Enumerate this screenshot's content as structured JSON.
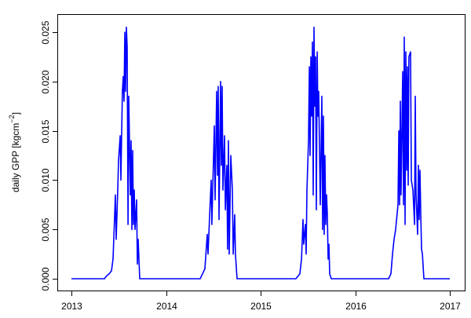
{
  "chart_data": {
    "type": "line",
    "title": "",
    "xlabel": "",
    "ylabel_main": "daily GPP [kgcm",
    "ylabel_sup": "−2",
    "ylabel_end": "]",
    "xlim": [
      2013,
      2017
    ],
    "ylim": [
      0,
      0.025
    ],
    "x_ticks": [
      2013,
      2014,
      2015,
      2016,
      2017
    ],
    "x_tick_labels": [
      "2013",
      "2014",
      "2015",
      "2016",
      "2017"
    ],
    "y_ticks": [
      0,
      0.005,
      0.01,
      0.015,
      0.02,
      0.025
    ],
    "y_tick_labels": [
      "0.000",
      "0.005",
      "0.010",
      "0.015",
      "0.020",
      "0.025"
    ],
    "grid": false,
    "line_color": "#0000ff",
    "series": [
      {
        "points": [
          [
            2013.0,
            0
          ],
          [
            2013.349,
            0
          ],
          [
            2013.373,
            0.0003
          ],
          [
            2013.398,
            0.0005
          ],
          [
            2013.423,
            0.0008
          ],
          [
            2013.44,
            0.002
          ],
          [
            2013.465,
            0.0085
          ],
          [
            2013.473,
            0.004
          ],
          [
            2013.49,
            0.009
          ],
          [
            2013.498,
            0.012
          ],
          [
            2013.515,
            0.0145
          ],
          [
            2013.523,
            0.01
          ],
          [
            2013.539,
            0.019
          ],
          [
            2013.548,
            0.0205
          ],
          [
            2013.556,
            0.018
          ],
          [
            2013.564,
            0.025
          ],
          [
            2013.573,
            0.019
          ],
          [
            2013.581,
            0.0255
          ],
          [
            2013.589,
            0.0235
          ],
          [
            2013.598,
            0.0055
          ],
          [
            2013.606,
            0.0185
          ],
          [
            2013.622,
            0.0085
          ],
          [
            2013.631,
            0.014
          ],
          [
            2013.639,
            0.005
          ],
          [
            2013.647,
            0.013
          ],
          [
            2013.656,
            0.0055
          ],
          [
            2013.664,
            0.009
          ],
          [
            2013.672,
            0.005
          ],
          [
            2013.689,
            0.008
          ],
          [
            2013.697,
            0.0015
          ],
          [
            2013.705,
            0.004
          ],
          [
            2013.714,
            0.002
          ],
          [
            2013.722,
            0
          ],
          [
            2014.361,
            0
          ],
          [
            2014.386,
            0.0005
          ],
          [
            2014.411,
            0.001
          ],
          [
            2014.436,
            0.0045
          ],
          [
            2014.444,
            0.0025
          ],
          [
            2014.461,
            0.0065
          ],
          [
            2014.477,
            0.01
          ],
          [
            2014.485,
            0.0055
          ],
          [
            2014.51,
            0.0155
          ],
          [
            2014.519,
            0.008
          ],
          [
            2014.535,
            0.019
          ],
          [
            2014.544,
            0.0105
          ],
          [
            2014.552,
            0.0195
          ],
          [
            2014.56,
            0.006
          ],
          [
            2014.577,
            0.02
          ],
          [
            2014.585,
            0.0115
          ],
          [
            2014.593,
            0.0195
          ],
          [
            2014.602,
            0.009
          ],
          [
            2014.618,
            0.0145
          ],
          [
            2014.627,
            0.007
          ],
          [
            2014.643,
            0.0115
          ],
          [
            2014.651,
            0.003
          ],
          [
            2014.66,
            0.014
          ],
          [
            2014.668,
            0.0025
          ],
          [
            2014.685,
            0.0125
          ],
          [
            2014.701,
            0.009
          ],
          [
            2014.71,
            0.0025
          ],
          [
            2014.726,
            0.0065
          ],
          [
            2014.734,
            0.0025
          ],
          [
            2014.751,
            0
          ],
          [
            2015.373,
            0
          ],
          [
            2015.398,
            0.0003
          ],
          [
            2015.415,
            0.0005
          ],
          [
            2015.432,
            0.002
          ],
          [
            2015.448,
            0.006
          ],
          [
            2015.456,
            0.0035
          ],
          [
            2015.473,
            0.0055
          ],
          [
            2015.481,
            0.0025
          ],
          [
            2015.49,
            0.009
          ],
          [
            2015.506,
            0.014
          ],
          [
            2015.515,
            0.0215
          ],
          [
            2015.523,
            0.0125
          ],
          [
            2015.531,
            0.0225
          ],
          [
            2015.539,
            0.0165
          ],
          [
            2015.548,
            0.024
          ],
          [
            2015.556,
            0.0085
          ],
          [
            2015.564,
            0.0255
          ],
          [
            2015.573,
            0.0175
          ],
          [
            2015.581,
            0.0225
          ],
          [
            2015.589,
            0.007
          ],
          [
            2015.598,
            0.023
          ],
          [
            2015.606,
            0.0165
          ],
          [
            2015.614,
            0.019
          ],
          [
            2015.631,
            0.0075
          ],
          [
            2015.647,
            0.0185
          ],
          [
            2015.656,
            0.005
          ],
          [
            2015.664,
            0.0165
          ],
          [
            2015.672,
            0.0045
          ],
          [
            2015.68,
            0.0125
          ],
          [
            2015.689,
            0.0055
          ],
          [
            2015.697,
            0.0085
          ],
          [
            2015.705,
            0.0065
          ],
          [
            2015.714,
            0.002
          ],
          [
            2015.722,
            0.0035
          ],
          [
            2015.73,
            0.0005
          ],
          [
            2015.747,
            0
          ],
          [
            2016.353,
            0
          ],
          [
            2016.378,
            0.0005
          ],
          [
            2016.394,
            0.0025
          ],
          [
            2016.411,
            0.004
          ],
          [
            2016.427,
            0.005
          ],
          [
            2016.452,
            0.0075
          ],
          [
            2016.461,
            0.015
          ],
          [
            2016.469,
            0.0075
          ],
          [
            2016.477,
            0.018
          ],
          [
            2016.485,
            0.0085
          ],
          [
            2016.502,
            0.021
          ],
          [
            2016.51,
            0.0075
          ],
          [
            2016.519,
            0.0245
          ],
          [
            2016.527,
            0.0055
          ],
          [
            2016.535,
            0.023
          ],
          [
            2016.544,
            0.011
          ],
          [
            2016.552,
            0.0215
          ],
          [
            2016.56,
            0.0095
          ],
          [
            2016.568,
            0.0225
          ],
          [
            2016.585,
            0.023
          ],
          [
            2016.593,
            0.01
          ],
          [
            2016.61,
            0.009
          ],
          [
            2016.627,
            0.0055
          ],
          [
            2016.635,
            0.0185
          ],
          [
            2016.643,
            0.0085
          ],
          [
            2016.66,
            0.0045
          ],
          [
            2016.668,
            0.0115
          ],
          [
            2016.676,
            0.006
          ],
          [
            2016.685,
            0.011
          ],
          [
            2016.693,
            0.0065
          ],
          [
            2016.701,
            0.003
          ],
          [
            2016.71,
            0.0025
          ],
          [
            2016.726,
            0
          ],
          [
            2017.0,
            0
          ]
        ]
      }
    ]
  }
}
